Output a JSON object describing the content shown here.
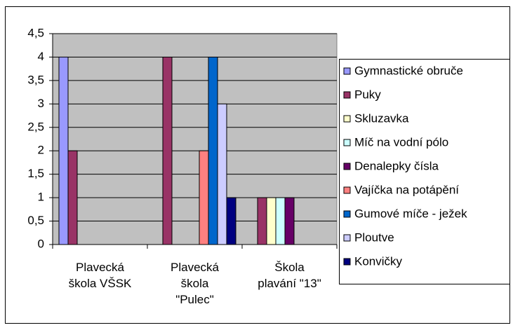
{
  "chart_data": {
    "type": "bar",
    "categories": [
      "Plavecká škola VŠSK",
      "Plavecká škola \"Pulec\"",
      "Škola plavání \"13\""
    ],
    "series": [
      {
        "name": "Gymnastické obruče",
        "color": "#9999ff",
        "values": [
          4,
          0,
          0
        ]
      },
      {
        "name": "Puky",
        "color": "#993366",
        "values": [
          2,
          4,
          1
        ]
      },
      {
        "name": "Skluzavka",
        "color": "#ffffcc",
        "values": [
          0,
          0,
          1
        ]
      },
      {
        "name": "Míč na vodní pólo",
        "color": "#ccffff",
        "values": [
          0,
          0,
          1
        ]
      },
      {
        "name": "Denalepky čísla",
        "color": "#660066",
        "values": [
          0,
          0,
          1
        ]
      },
      {
        "name": "Vajíčka na potápění",
        "color": "#ff8080",
        "values": [
          0,
          2,
          0
        ]
      },
      {
        "name": "Gumové míče - ježek",
        "color": "#0066cc",
        "values": [
          0,
          4,
          0
        ]
      },
      {
        "name": "Ploutve",
        "color": "#ccccff",
        "values": [
          0,
          3,
          0
        ]
      },
      {
        "name": "Konvičky",
        "color": "#000080",
        "values": [
          0,
          1,
          0
        ]
      }
    ],
    "ylim": [
      0,
      4.5
    ],
    "yticks": [
      0,
      {
        "value": 0.5,
        "label": "0,5"
      },
      1,
      {
        "value": 1.5,
        "label": "1,5"
      },
      2,
      {
        "value": 2.5,
        "label": "2,5"
      },
      3,
      {
        "value": 3.5,
        "label": "3,5"
      },
      4,
      {
        "value": 4.5,
        "label": "4,5"
      }
    ],
    "grid": true,
    "legend": "right"
  }
}
